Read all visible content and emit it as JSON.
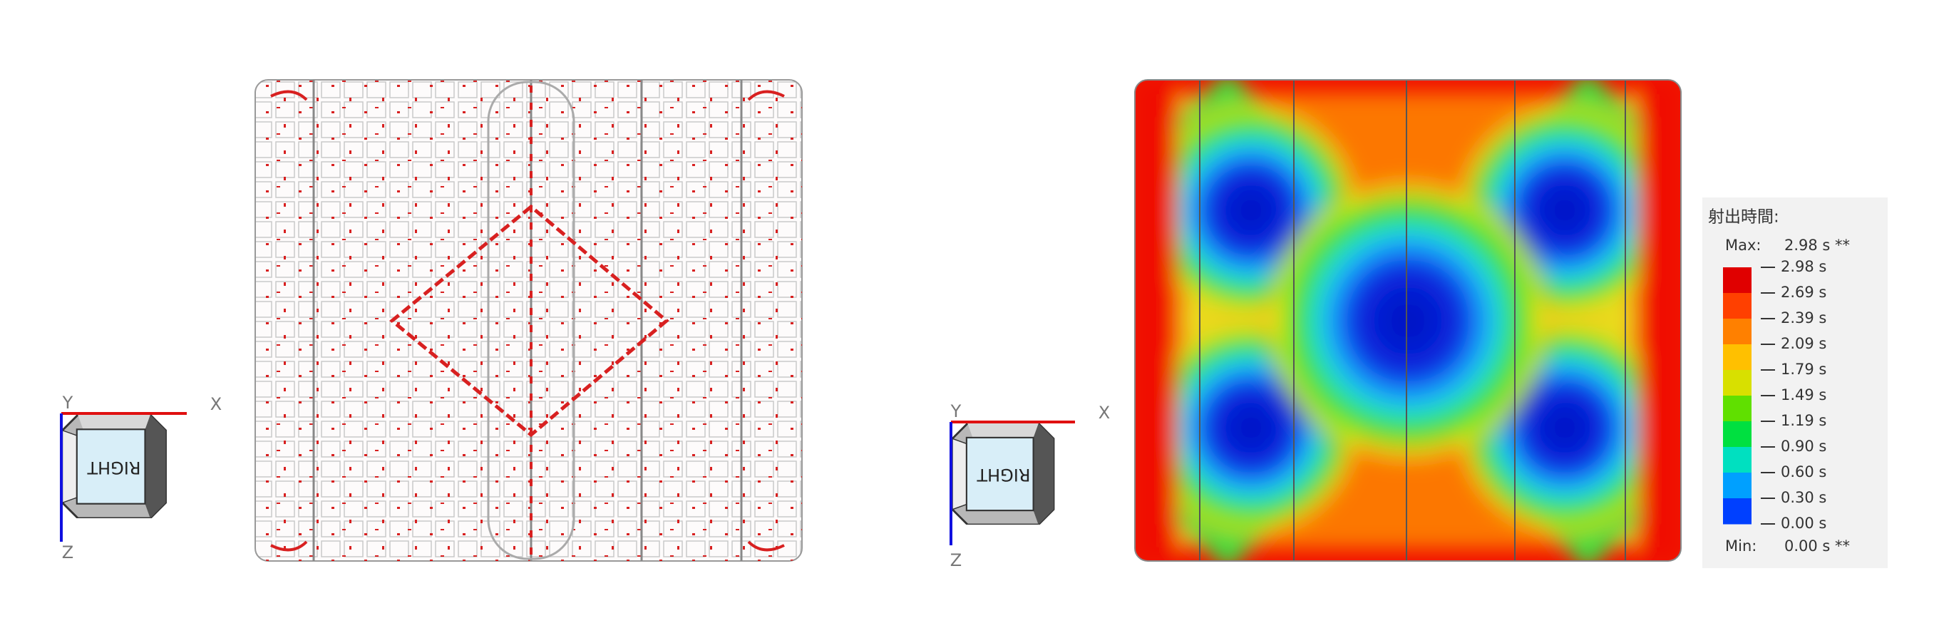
{
  "left_view": {
    "axes": {
      "y": "Y",
      "x": "X",
      "z": "Z"
    },
    "cube_face": "RIGHT"
  },
  "right_view": {
    "axes": {
      "y": "Y",
      "x": "X",
      "z": "Z"
    },
    "cube_face": "RIGHT"
  },
  "legend": {
    "title": "射出時間:",
    "max_label": "Max:",
    "max_value": "2.98 s **",
    "ticks": [
      "2.98 s",
      "2.69 s",
      "2.39 s",
      "2.09 s",
      "1.79 s",
      "1.49 s",
      "1.19 s",
      "0.90 s",
      "0.60 s",
      "0.30 s",
      "0.00 s"
    ],
    "min_label": "Min:",
    "min_value": "0.00 s **"
  }
}
